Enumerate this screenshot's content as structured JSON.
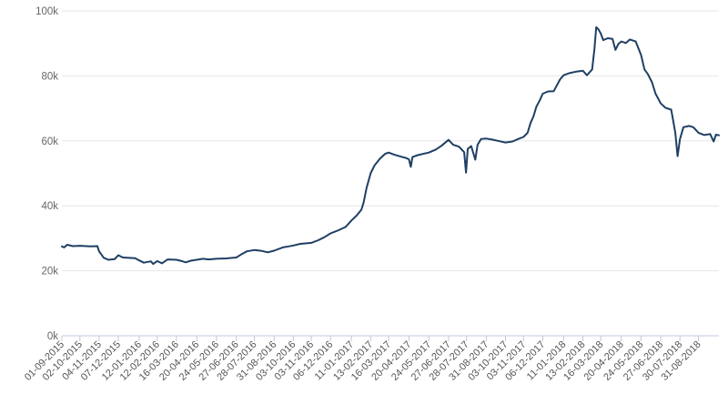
{
  "chart_data": {
    "type": "line",
    "title": "",
    "xlabel": "",
    "ylabel": "",
    "ylim": [
      0,
      100000
    ],
    "y_ticks": [
      0,
      20000,
      40000,
      60000,
      80000,
      100000
    ],
    "y_tick_labels": [
      "0k",
      "20k",
      "40k",
      "60k",
      "80k",
      "100k"
    ],
    "x_range": [
      "2015-09-01",
      "2018-10-05"
    ],
    "x_tick_dates": [
      "2015-09-01",
      "2015-10-02",
      "2015-11-04",
      "2015-12-07",
      "2016-01-12",
      "2016-02-12",
      "2016-03-16",
      "2016-04-20",
      "2016-05-24",
      "2016-06-27",
      "2016-07-28",
      "2016-08-31",
      "2016-10-03",
      "2016-11-03",
      "2016-12-06",
      "2017-01-11",
      "2017-02-13",
      "2017-03-16",
      "2017-04-20",
      "2017-05-24",
      "2017-06-27",
      "2017-07-28",
      "2017-08-31",
      "2017-10-03",
      "2017-11-03",
      "2017-12-06",
      "2018-01-11",
      "2018-02-13",
      "2018-03-16",
      "2018-04-20",
      "2018-05-24",
      "2018-06-27",
      "2018-07-30",
      "2018-08-31"
    ],
    "x_tick_labels": [
      "01-09-2015",
      "02-10-2015",
      "04-11-2015",
      "07-12-2015",
      "12-01-2016",
      "12-02-2016",
      "16-03-2016",
      "20-04-2016",
      "24-05-2016",
      "27-06-2016",
      "28-07-2016",
      "31-08-2016",
      "03-10-2016",
      "03-11-2016",
      "06-12-2016",
      "11-01-2017",
      "13-02-2017",
      "16-03-2017",
      "20-04-2017",
      "24-05-2017",
      "27-06-2017",
      "28-07-2017",
      "31-08-2017",
      "03-10-2017",
      "03-11-2017",
      "06-12-2017",
      "11-01-2018",
      "13-02-2018",
      "16-03-2018",
      "20-04-2018",
      "24-05-2018",
      "27-06-2018",
      "30-07-2018",
      "31-08-2018"
    ],
    "grid": true,
    "legend": "none",
    "series": [
      {
        "color": "#1f3f63",
        "points": [
          [
            "2015-09-01",
            27500
          ],
          [
            "2015-09-05",
            27200
          ],
          [
            "2015-09-10",
            28000
          ],
          [
            "2015-09-20",
            27600
          ],
          [
            "2015-10-02",
            27700
          ],
          [
            "2015-10-20",
            27500
          ],
          [
            "2015-11-01",
            27600
          ],
          [
            "2015-11-04",
            26000
          ],
          [
            "2015-11-12",
            24000
          ],
          [
            "2015-11-20",
            23400
          ],
          [
            "2015-12-01",
            23600
          ],
          [
            "2015-12-07",
            24800
          ],
          [
            "2015-12-15",
            24100
          ],
          [
            "2016-01-05",
            23900
          ],
          [
            "2016-01-12",
            23200
          ],
          [
            "2016-01-20",
            22500
          ],
          [
            "2016-02-01",
            22900
          ],
          [
            "2016-02-05",
            22100
          ],
          [
            "2016-02-12",
            23000
          ],
          [
            "2016-02-20",
            22300
          ],
          [
            "2016-03-01",
            23500
          ],
          [
            "2016-03-16",
            23400
          ],
          [
            "2016-03-25",
            23000
          ],
          [
            "2016-04-01",
            22600
          ],
          [
            "2016-04-10",
            23100
          ],
          [
            "2016-04-20",
            23400
          ],
          [
            "2016-05-01",
            23700
          ],
          [
            "2016-05-10",
            23500
          ],
          [
            "2016-05-24",
            23700
          ],
          [
            "2016-06-10",
            23800
          ],
          [
            "2016-06-27",
            24100
          ],
          [
            "2016-07-05",
            25000
          ],
          [
            "2016-07-15",
            26000
          ],
          [
            "2016-07-28",
            26400
          ],
          [
            "2016-08-10",
            26100
          ],
          [
            "2016-08-20",
            25700
          ],
          [
            "2016-08-31",
            26200
          ],
          [
            "2016-09-15",
            27200
          ],
          [
            "2016-09-25",
            27500
          ],
          [
            "2016-10-03",
            27800
          ],
          [
            "2016-10-15",
            28300
          ],
          [
            "2016-11-03",
            28600
          ],
          [
            "2016-11-15",
            29400
          ],
          [
            "2016-11-25",
            30300
          ],
          [
            "2016-12-06",
            31500
          ],
          [
            "2016-12-20",
            32500
          ],
          [
            "2017-01-01",
            33500
          ],
          [
            "2017-01-11",
            35500
          ],
          [
            "2017-01-20",
            37000
          ],
          [
            "2017-01-28",
            38800
          ],
          [
            "2017-02-01",
            41000
          ],
          [
            "2017-02-06",
            45500
          ],
          [
            "2017-02-13",
            50000
          ],
          [
            "2017-02-20",
            52500
          ],
          [
            "2017-03-01",
            54500
          ],
          [
            "2017-03-10",
            56000
          ],
          [
            "2017-03-16",
            56400
          ],
          [
            "2017-03-25",
            55800
          ],
          [
            "2017-04-05",
            55200
          ],
          [
            "2017-04-15",
            54700
          ],
          [
            "2017-04-20",
            54300
          ],
          [
            "2017-04-23",
            52000
          ],
          [
            "2017-04-26",
            55000
          ],
          [
            "2017-05-05",
            55600
          ],
          [
            "2017-05-24",
            56400
          ],
          [
            "2017-06-05",
            57300
          ],
          [
            "2017-06-15",
            58500
          ],
          [
            "2017-06-27",
            60300
          ],
          [
            "2017-07-05",
            58800
          ],
          [
            "2017-07-15",
            58200
          ],
          [
            "2017-07-24",
            56500
          ],
          [
            "2017-07-27",
            50200
          ],
          [
            "2017-07-30",
            57500
          ],
          [
            "2017-08-05",
            58400
          ],
          [
            "2017-08-12",
            54200
          ],
          [
            "2017-08-16",
            58800
          ],
          [
            "2017-08-22",
            60600
          ],
          [
            "2017-08-31",
            60700
          ],
          [
            "2017-09-10",
            60400
          ],
          [
            "2017-09-20",
            60000
          ],
          [
            "2017-10-03",
            59500
          ],
          [
            "2017-10-15",
            59800
          ],
          [
            "2017-10-25",
            60600
          ],
          [
            "2017-11-03",
            61200
          ],
          [
            "2017-11-10",
            62500
          ],
          [
            "2017-11-15",
            65500
          ],
          [
            "2017-11-20",
            67500
          ],
          [
            "2017-11-25",
            70500
          ],
          [
            "2017-12-01",
            72500
          ],
          [
            "2017-12-06",
            74500
          ],
          [
            "2017-12-15",
            75200
          ],
          [
            "2017-12-25",
            75300
          ],
          [
            "2018-01-05",
            79000
          ],
          [
            "2018-01-11",
            80200
          ],
          [
            "2018-01-20",
            80800
          ],
          [
            "2018-02-01",
            81300
          ],
          [
            "2018-02-13",
            81600
          ],
          [
            "2018-02-20",
            80200
          ],
          [
            "2018-03-01",
            82000
          ],
          [
            "2018-03-05",
            88500
          ],
          [
            "2018-03-08",
            95000
          ],
          [
            "2018-03-12",
            94300
          ],
          [
            "2018-03-16",
            93000
          ],
          [
            "2018-03-20",
            91000
          ],
          [
            "2018-03-28",
            91600
          ],
          [
            "2018-04-05",
            91400
          ],
          [
            "2018-04-10",
            88000
          ],
          [
            "2018-04-15",
            89800
          ],
          [
            "2018-04-20",
            90600
          ],
          [
            "2018-04-28",
            90100
          ],
          [
            "2018-05-05",
            91200
          ],
          [
            "2018-05-15",
            90600
          ],
          [
            "2018-05-24",
            86500
          ],
          [
            "2018-05-30",
            82000
          ],
          [
            "2018-06-05",
            80500
          ],
          [
            "2018-06-12",
            78000
          ],
          [
            "2018-06-18",
            74500
          ],
          [
            "2018-06-27",
            71500
          ],
          [
            "2018-07-05",
            70200
          ],
          [
            "2018-07-15",
            69600
          ],
          [
            "2018-07-22",
            62500
          ],
          [
            "2018-07-26",
            55300
          ],
          [
            "2018-07-30",
            60500
          ],
          [
            "2018-08-05",
            64200
          ],
          [
            "2018-08-15",
            64600
          ],
          [
            "2018-08-22",
            64200
          ],
          [
            "2018-08-31",
            62500
          ],
          [
            "2018-09-10",
            61800
          ],
          [
            "2018-09-20",
            62100
          ],
          [
            "2018-09-26",
            59800
          ],
          [
            "2018-09-30",
            61900
          ],
          [
            "2018-10-05",
            61700
          ]
        ]
      }
    ]
  }
}
